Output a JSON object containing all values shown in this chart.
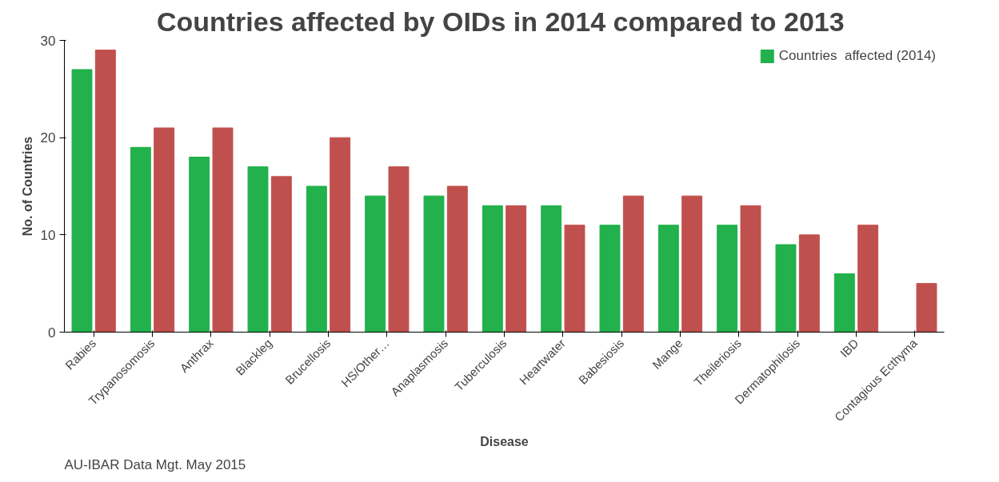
{
  "chart_data": {
    "type": "bar",
    "title": "Countries  affected by OIDs in 2014 compared to 2013",
    "xlabel": "Disease",
    "ylabel": "No. of Countries",
    "categories": [
      "Rabies",
      "Trypanosomosis",
      "Anthrax",
      "Blackleg",
      "Brucellosis",
      "HS/Other…",
      "Anaplasmosis",
      "Tuberculosis",
      "Heartwater",
      "Babesiosis",
      "Mange",
      "Theileriosis",
      "Dermatophilosis",
      "IBD",
      "Contagious Ecthyma"
    ],
    "series": [
      {
        "name": "Countries  affected (2014)",
        "color": "#22b14c",
        "values": [
          27,
          19,
          18,
          17,
          15,
          14,
          14,
          13,
          13,
          11,
          11,
          11,
          9,
          6,
          0
        ]
      },
      {
        "color": "#c0504d",
        "values": [
          29,
          21,
          21,
          16,
          20,
          17,
          15,
          13,
          11,
          14,
          14,
          13,
          10,
          11,
          5
        ]
      }
    ],
    "ylim": [
      0,
      30
    ],
    "yticks": [
      0,
      10,
      20,
      30
    ],
    "grid": false,
    "legend": "top right",
    "annotations": [
      "AU-IBAR Data Mgt. May 2015"
    ]
  }
}
